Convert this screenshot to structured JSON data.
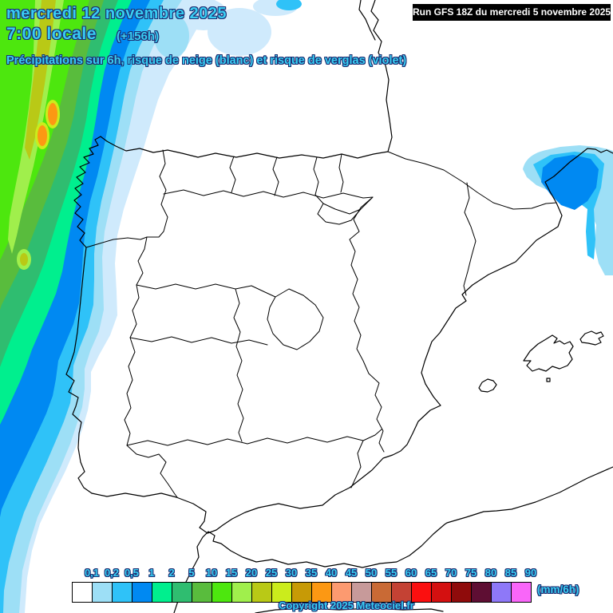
{
  "header": {
    "date_line": "mercredi 12 novembre 2025",
    "time_line": "7:00 locale",
    "offset_label": "(+156h)",
    "subtitle": "Précipitations sur 6h, risque de neige (blanc) et risque de verglas (violet)"
  },
  "run_box": {
    "label": "Run GFS 18Z du mercredi 5 novembre 2025",
    "background": "#000000",
    "text_color": "#ffffff"
  },
  "colors": {
    "label_fill": "#38cdf2",
    "label_outline": "#1d2e72",
    "sea_and_land": "#ffffff",
    "coastline": "#000000"
  },
  "legend": {
    "unit": "(mm/6h)",
    "ticks": [
      "0,1",
      "0,2",
      "0,5",
      "1",
      "2",
      "5",
      "10",
      "15",
      "20",
      "25",
      "30",
      "35",
      "40",
      "45",
      "50",
      "55",
      "60",
      "65",
      "70",
      "75",
      "80",
      "85",
      "90"
    ],
    "swatches": [
      "#ffffff",
      "#9ddff6",
      "#2fc2f8",
      "#0089f2",
      "#00ef8e",
      "#2fbd70",
      "#59bc3d",
      "#4de70e",
      "#a0ef4c",
      "#b9c916",
      "#cbec1c",
      "#c79a06",
      "#fc9813",
      "#fc9a70",
      "#c79a9a",
      "#c96a35",
      "#c44234",
      "#fb0f0f",
      "#d41010",
      "#8f0b0b",
      "#5e0e33",
      "#8e78f8",
      "#f966f9"
    ]
  },
  "footer": {
    "copyright": "Copyright 2025 Meteociel.fr"
  }
}
